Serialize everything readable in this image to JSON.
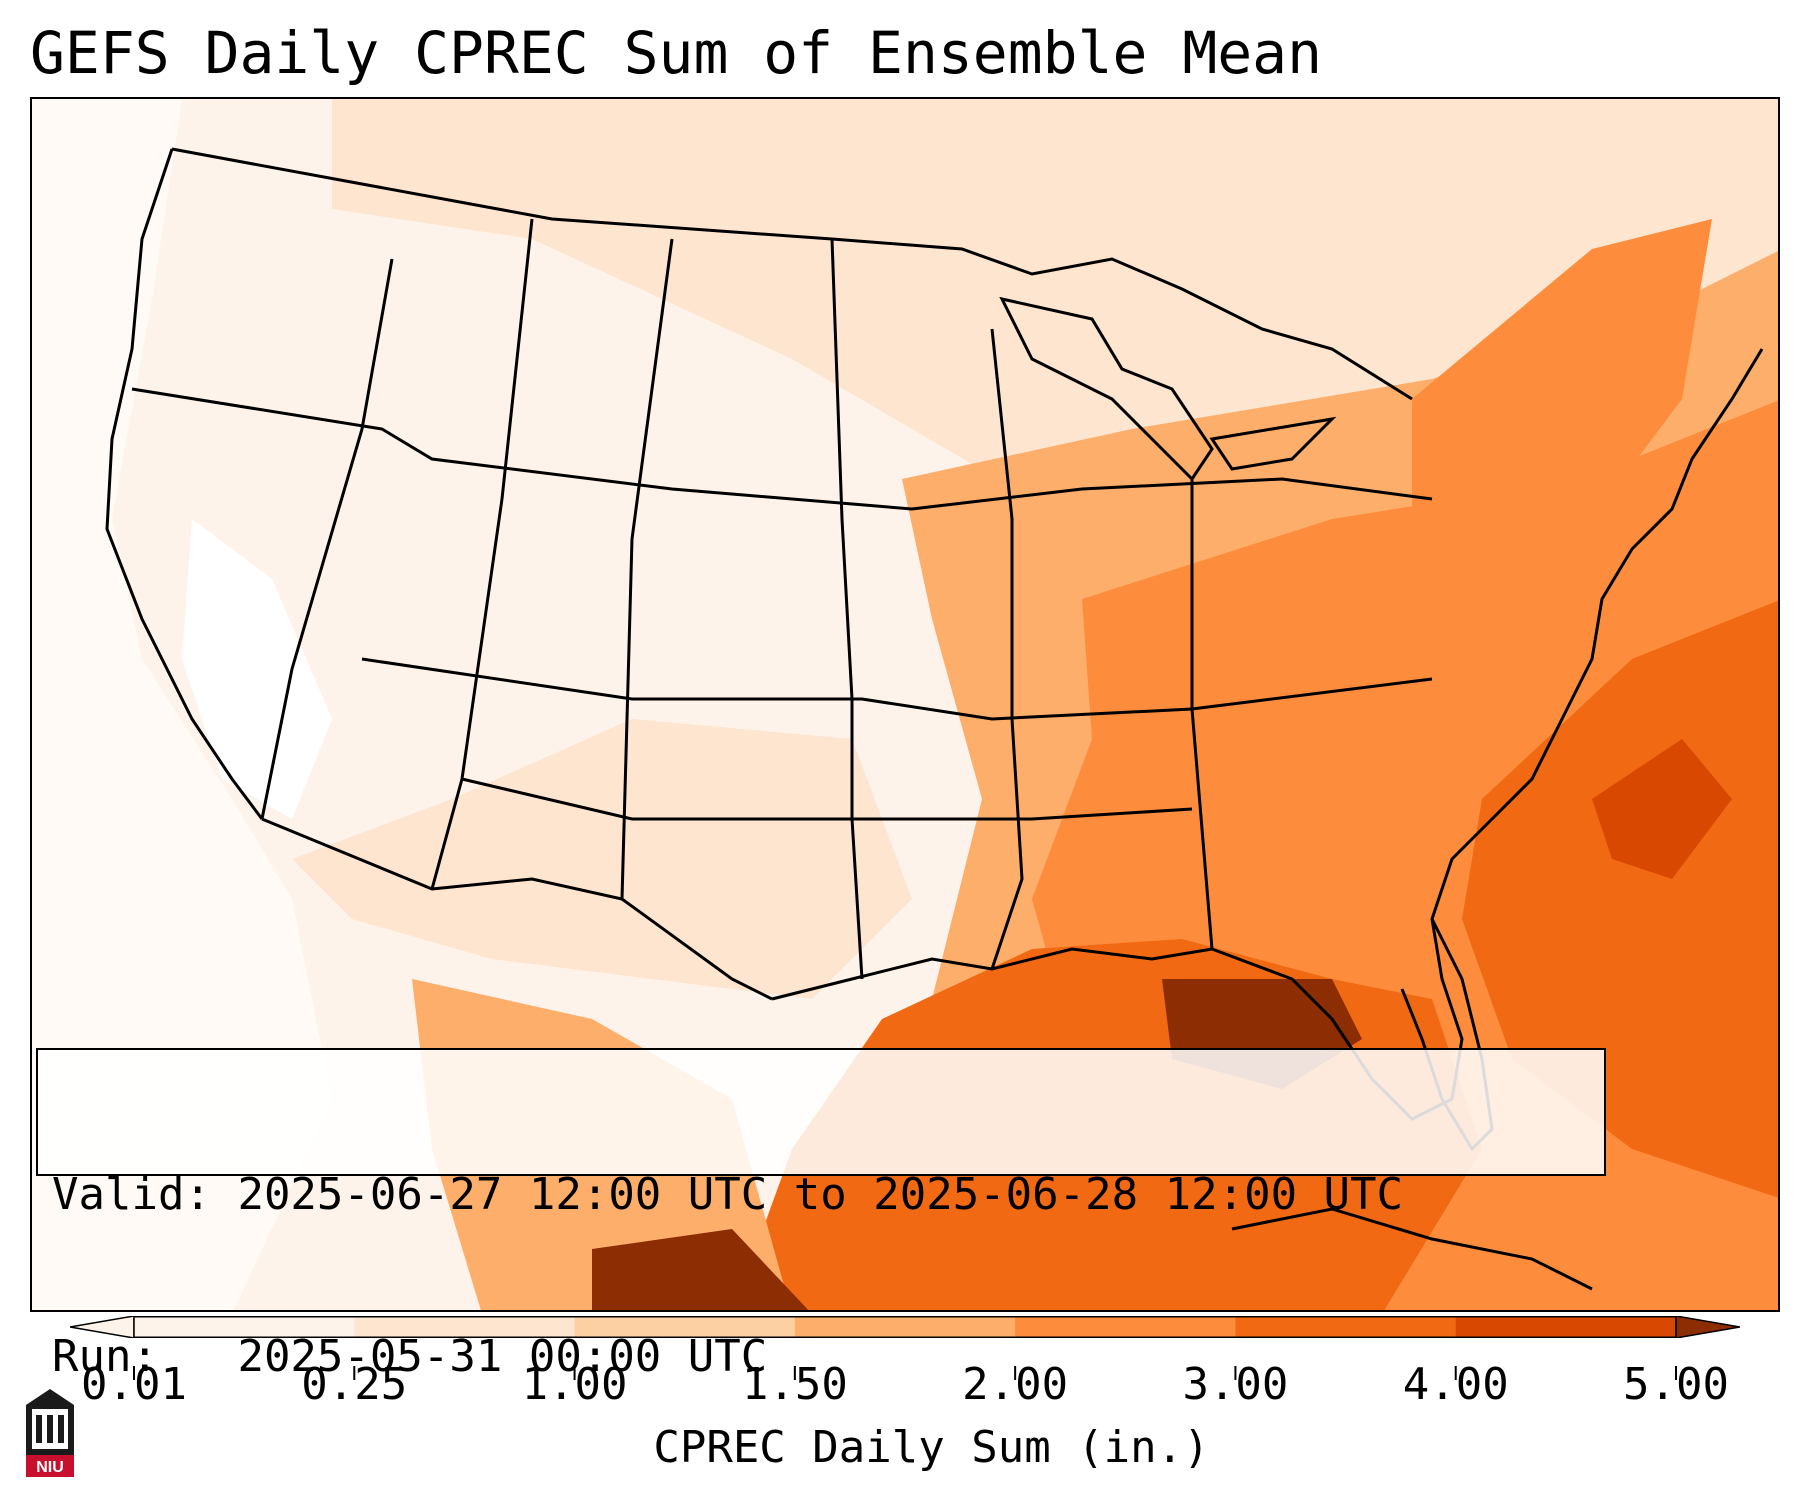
{
  "title": "GEFS Daily CPREC Sum of Ensemble Mean",
  "info": {
    "valid_label": "Valid:",
    "valid_value": "2025-06-27 12:00 UTC to 2025-06-28 12:00 UTC",
    "run_label": "Run:",
    "run_value": "2025-05-31 00:00 UTC"
  },
  "colorbar": {
    "label": "CPREC Daily Sum (in.)",
    "ticks": [
      "0.01",
      "0.25",
      "1.00",
      "1.50",
      "2.00",
      "3.00",
      "4.00",
      "5.00"
    ],
    "colors": [
      "#fef3ea",
      "#fde5cf",
      "#fcd0a3",
      "#fdae6b",
      "#fd8d3c",
      "#f16913",
      "#d94801",
      "#8c2d04"
    ],
    "extend": "both"
  },
  "logo": {
    "text": "NIU",
    "icon": "niu-logo-icon",
    "color": "#c8102e"
  },
  "map": {
    "region": "Continental United States and surrounding areas",
    "shading_color_low": "#fef3ea",
    "shading_color_high": "#8c2d04"
  }
}
